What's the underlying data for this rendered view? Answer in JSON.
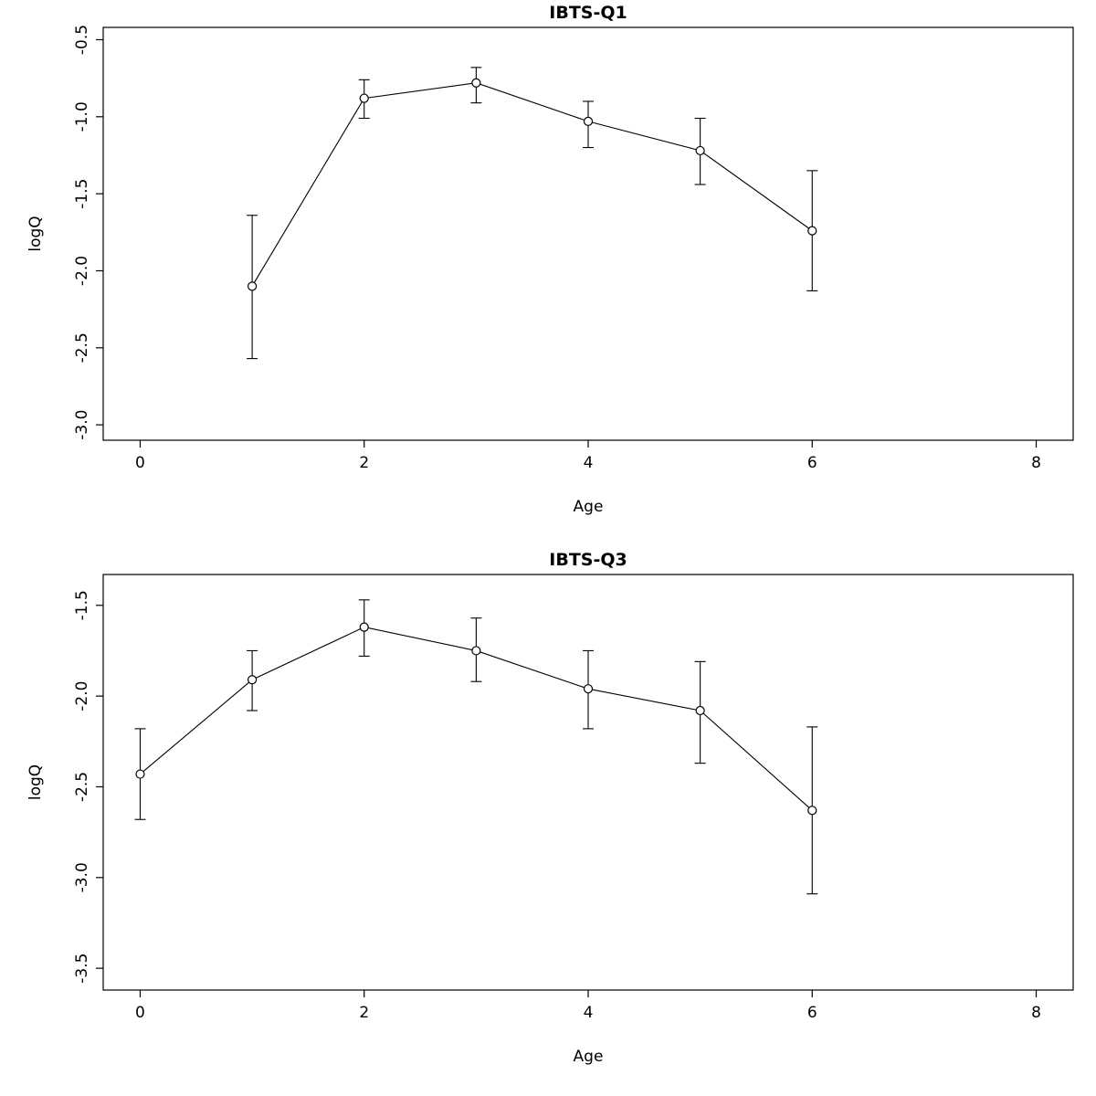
{
  "page": {
    "background": "#ffffff",
    "foreground": "#000000"
  },
  "chart_data": [
    {
      "id": "ibts-q1",
      "type": "line",
      "title": "IBTS-Q1",
      "xlabel": "Age",
      "ylabel": "logQ",
      "x": [
        1,
        2,
        3,
        4,
        5,
        6
      ],
      "y": [
        -2.1,
        -0.88,
        -0.78,
        -1.03,
        -1.22,
        -1.74
      ],
      "err_low": [
        -2.57,
        -1.01,
        -0.91,
        -1.2,
        -1.44,
        -2.13
      ],
      "err_high": [
        -1.64,
        -0.76,
        -0.68,
        -0.9,
        -1.01,
        -1.35
      ],
      "xlim": [
        -0.33,
        8.33
      ],
      "ylim": [
        -3.1,
        -0.42
      ],
      "xticks": [
        0,
        2,
        4,
        6,
        8
      ],
      "xtick_labels": [
        "0",
        "2",
        "4",
        "6",
        "8"
      ],
      "yticks": [
        -3.0,
        -2.5,
        -2.0,
        -1.5,
        -1.0,
        -0.5
      ],
      "ytick_labels": [
        "-3.0",
        "-2.5",
        "-2.0",
        "-1.5",
        "-1.0",
        "-0.5"
      ],
      "line_color": "#000000",
      "point_color": "#000000",
      "point_style": "open-circle",
      "error_bar_style": "capped",
      "grid": false,
      "legend": "none"
    },
    {
      "id": "ibts-q3",
      "type": "line",
      "title": "IBTS-Q3",
      "xlabel": "Age",
      "ylabel": "logQ",
      "x": [
        0,
        1,
        2,
        3,
        4,
        5,
        6
      ],
      "y": [
        -2.43,
        -1.91,
        -1.62,
        -1.75,
        -1.96,
        -2.08,
        -2.63
      ],
      "err_low": [
        -2.68,
        -2.08,
        -1.78,
        -1.92,
        -2.18,
        -2.37,
        -3.09
      ],
      "err_high": [
        -2.18,
        -1.75,
        -1.47,
        -1.57,
        -1.75,
        -1.81,
        -2.17
      ],
      "xlim": [
        -0.33,
        8.33
      ],
      "ylim": [
        -3.62,
        -1.33
      ],
      "xticks": [
        0,
        2,
        4,
        6,
        8
      ],
      "xtick_labels": [
        "0",
        "2",
        "4",
        "6",
        "8"
      ],
      "yticks": [
        -3.5,
        -3.0,
        -2.5,
        -2.0,
        -1.5
      ],
      "ytick_labels": [
        "-3.5",
        "-3.0",
        "-2.5",
        "-2.0",
        "-1.5"
      ],
      "line_color": "#000000",
      "point_color": "#000000",
      "point_style": "open-circle",
      "error_bar_style": "capped",
      "grid": false,
      "legend": "none"
    }
  ]
}
